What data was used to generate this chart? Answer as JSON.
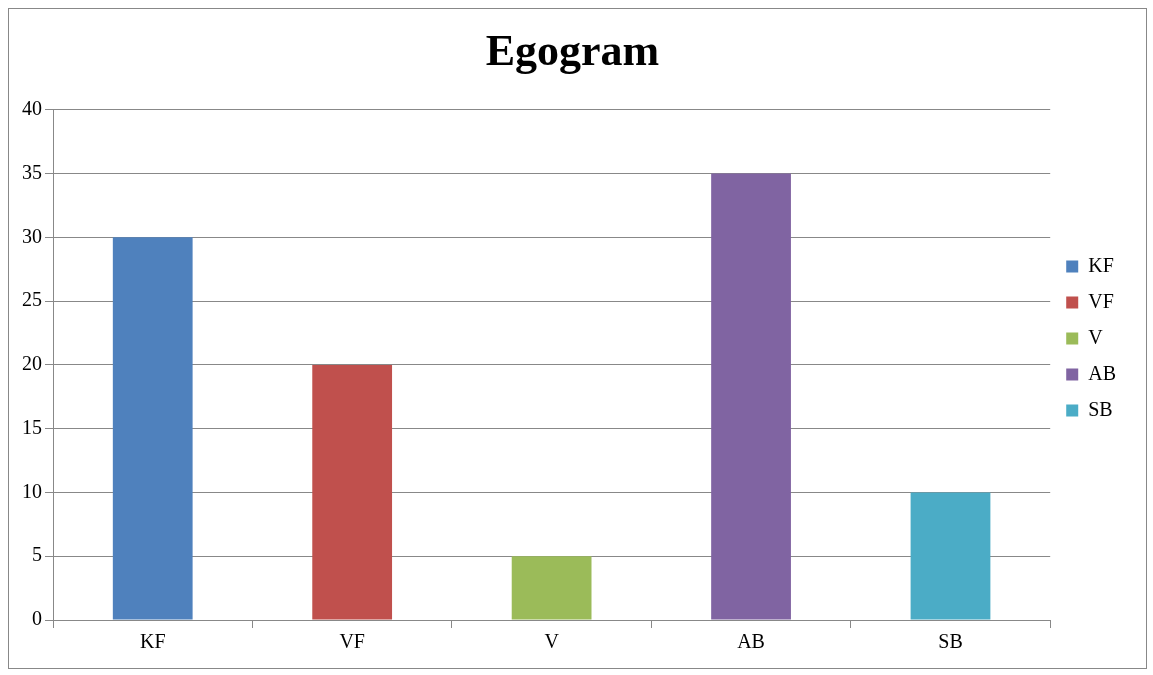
{
  "chart_data": {
    "type": "bar",
    "title": "Egogram",
    "categories": [
      "KF",
      "VF",
      "V",
      "AB",
      "SB"
    ],
    "series": [
      {
        "name": "KF",
        "color": "#4f81bd",
        "values": [
          30,
          null,
          null,
          null,
          null
        ]
      },
      {
        "name": "VF",
        "color": "#c0504d",
        "values": [
          null,
          20,
          null,
          null,
          null
        ]
      },
      {
        "name": "V",
        "color": "#9bbb59",
        "values": [
          null,
          null,
          5,
          null,
          null
        ]
      },
      {
        "name": "AB",
        "color": "#8064a2",
        "values": [
          null,
          null,
          null,
          35,
          null
        ]
      },
      {
        "name": "SB",
        "color": "#4bacc6",
        "values": [
          null,
          null,
          null,
          null,
          10
        ]
      }
    ],
    "ylim": [
      0,
      40
    ],
    "yticks": [
      0,
      5,
      10,
      15,
      20,
      25,
      30,
      35,
      40
    ],
    "grid": "y",
    "legend": "right"
  }
}
